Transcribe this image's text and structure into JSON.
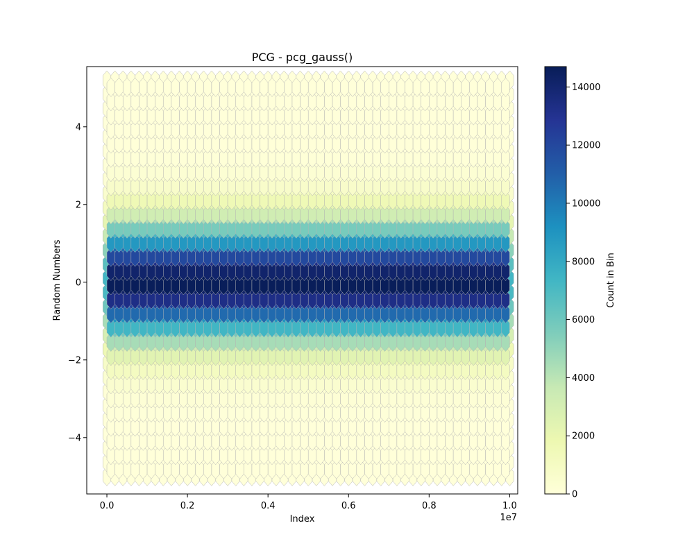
{
  "chart_data": {
    "type": "heatmap",
    "subtype": "hexbin",
    "title": "PCG - pcg_gauss()",
    "xlabel": "Index",
    "ylabel": "Random Numbers",
    "x_offset_label": "1e7",
    "x_range": [
      0,
      10000000
    ],
    "y_range": [
      -5.0,
      5.2
    ],
    "xlim": [
      -0.05,
      1.02
    ],
    "ylim": [
      -5.45,
      5.55
    ],
    "x_ticks": [
      0.0,
      0.2,
      0.4,
      0.6,
      0.8,
      1.0
    ],
    "x_tick_labels": [
      "0.0",
      "0.2",
      "0.4",
      "0.6",
      "0.8",
      "1.0"
    ],
    "y_ticks": [
      4,
      2,
      0,
      -2,
      -4
    ],
    "y_tick_labels": [
      "4",
      "2",
      "0",
      "−2",
      "−4"
    ],
    "grid": false,
    "hex_columns": 51,
    "hex_rows": 29,
    "peak_count": 14700,
    "distribution": "gaussian: mean 0, std 1",
    "colormap": "YlGnBu",
    "colormap_stops": [
      "#ffffd9",
      "#edf8b1",
      "#c7e9b4",
      "#7fcdbb",
      "#41b6c4",
      "#1d91c0",
      "#225ea8",
      "#253494",
      "#081d58"
    ],
    "hex_edge_color": "#b4b4b4",
    "colorbar": {
      "label": "Count in Bin",
      "range": [
        0,
        14700
      ],
      "ticks": [
        0,
        2000,
        4000,
        6000,
        8000,
        10000,
        12000,
        14000
      ],
      "tick_labels": [
        "0",
        "2000",
        "4000",
        "6000",
        "8000",
        "10000",
        "12000",
        "14000"
      ]
    }
  }
}
